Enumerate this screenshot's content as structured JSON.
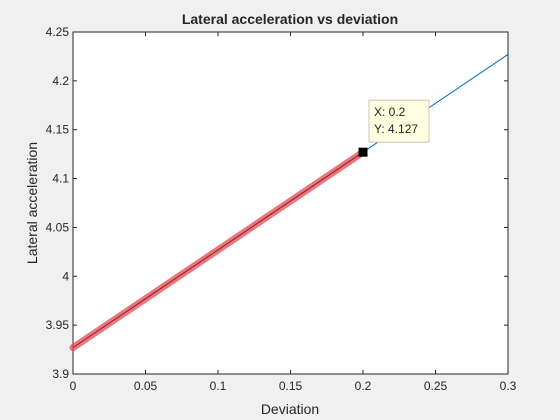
{
  "chart_data": {
    "type": "line",
    "title": "Lateral acceleration vs deviation",
    "xlabel": "Deviation",
    "ylabel": "Lateral acceleration",
    "xlim": [
      0,
      0.3
    ],
    "ylim": [
      3.9,
      4.25
    ],
    "xticks": [
      "0",
      "0.05",
      "0.1",
      "0.15",
      "0.2",
      "0.25",
      "0.3"
    ],
    "yticks": [
      "3.9",
      "3.95",
      "4",
      "4.05",
      "4.1",
      "4.15",
      "4.2",
      "4.25"
    ],
    "grid": false,
    "series": [
      {
        "color": "#0072bd",
        "x": [
          0,
          0.3
        ],
        "y": [
          3.927,
          4.227
        ]
      }
    ],
    "highlight": {
      "color": "#e8474f",
      "x": [
        0,
        0.2
      ],
      "y": [
        3.927,
        4.127
      ]
    },
    "datatip": {
      "x": 0.2,
      "y": 4.127,
      "x_text": "X: 0.2",
      "y_text": "Y: 4.127"
    }
  }
}
